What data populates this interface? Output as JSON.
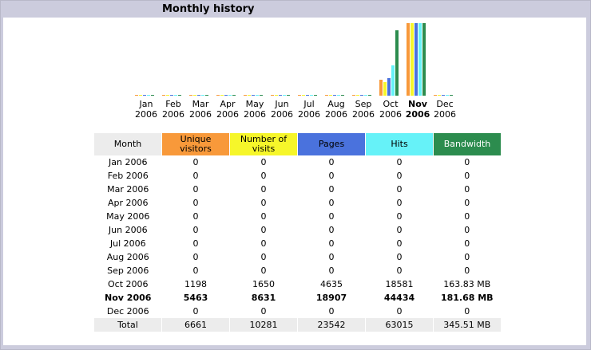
{
  "title": "Monthly history",
  "chart_data": {
    "type": "bar",
    "categories": [
      "Jan 2006",
      "Feb 2006",
      "Mar 2006",
      "Apr 2006",
      "May 2006",
      "Jun 2006",
      "Jul 2006",
      "Aug 2006",
      "Sep 2006",
      "Oct 2006",
      "Nov 2006",
      "Dec 2006"
    ],
    "category_lines": [
      [
        "Jan",
        "2006"
      ],
      [
        "Feb",
        "2006"
      ],
      [
        "Mar",
        "2006"
      ],
      [
        "Apr",
        "2006"
      ],
      [
        "May",
        "2006"
      ],
      [
        "Jun",
        "2006"
      ],
      [
        "Jul",
        "2006"
      ],
      [
        "Aug",
        "2006"
      ],
      [
        "Sep",
        "2006"
      ],
      [
        "Oct",
        "2006"
      ],
      [
        "Nov",
        "2006"
      ],
      [
        "Dec",
        "2006"
      ]
    ],
    "highlight_category": "Nov 2006",
    "series": [
      {
        "key": "visitors",
        "color": "#f8993a",
        "values": [
          0,
          0,
          0,
          0,
          0,
          0,
          0,
          0,
          0,
          1198,
          5463,
          0
        ]
      },
      {
        "key": "visits",
        "color": "#f6f62a",
        "values": [
          0,
          0,
          0,
          0,
          0,
          0,
          0,
          0,
          0,
          1650,
          8631,
          0
        ]
      },
      {
        "key": "pages",
        "color": "#4a72dd",
        "values": [
          0,
          0,
          0,
          0,
          0,
          0,
          0,
          0,
          0,
          4635,
          18907,
          0
        ]
      },
      {
        "key": "hits",
        "color": "#66f2f8",
        "values": [
          0,
          0,
          0,
          0,
          0,
          0,
          0,
          0,
          0,
          18581,
          44434,
          0
        ]
      },
      {
        "key": "bandwidth",
        "color": "#2c8c4e",
        "values": [
          0,
          0,
          0,
          0,
          0,
          0,
          0,
          0,
          0,
          163.83,
          181.68,
          0
        ]
      }
    ]
  },
  "table": {
    "headers": {
      "month": "Month",
      "visitors": [
        "Unique",
        "visitors"
      ],
      "visits": [
        "Number of",
        "visits"
      ],
      "pages": "Pages",
      "hits": "Hits",
      "bandwidth": "Bandwidth"
    },
    "rows": [
      {
        "month": "Jan 2006",
        "visitors": "0",
        "visits": "0",
        "pages": "0",
        "hits": "0",
        "bandwidth": "0"
      },
      {
        "month": "Feb 2006",
        "visitors": "0",
        "visits": "0",
        "pages": "0",
        "hits": "0",
        "bandwidth": "0"
      },
      {
        "month": "Mar 2006",
        "visitors": "0",
        "visits": "0",
        "pages": "0",
        "hits": "0",
        "bandwidth": "0"
      },
      {
        "month": "Apr 2006",
        "visitors": "0",
        "visits": "0",
        "pages": "0",
        "hits": "0",
        "bandwidth": "0"
      },
      {
        "month": "May 2006",
        "visitors": "0",
        "visits": "0",
        "pages": "0",
        "hits": "0",
        "bandwidth": "0"
      },
      {
        "month": "Jun 2006",
        "visitors": "0",
        "visits": "0",
        "pages": "0",
        "hits": "0",
        "bandwidth": "0"
      },
      {
        "month": "Jul 2006",
        "visitors": "0",
        "visits": "0",
        "pages": "0",
        "hits": "0",
        "bandwidth": "0"
      },
      {
        "month": "Aug 2006",
        "visitors": "0",
        "visits": "0",
        "pages": "0",
        "hits": "0",
        "bandwidth": "0"
      },
      {
        "month": "Sep 2006",
        "visitors": "0",
        "visits": "0",
        "pages": "0",
        "hits": "0",
        "bandwidth": "0"
      },
      {
        "month": "Oct 2006",
        "visitors": "1198",
        "visits": "1650",
        "pages": "4635",
        "hits": "18581",
        "bandwidth": "163.83 MB"
      },
      {
        "month": "Nov 2006",
        "visitors": "5463",
        "visits": "8631",
        "pages": "18907",
        "hits": "44434",
        "bandwidth": "181.68 MB",
        "bold": true
      },
      {
        "month": "Dec 2006",
        "visitors": "0",
        "visits": "0",
        "pages": "0",
        "hits": "0",
        "bandwidth": "0"
      }
    ],
    "total": {
      "month": "Total",
      "visitors": "6661",
      "visits": "10281",
      "pages": "23542",
      "hits": "63015",
      "bandwidth": "345.51 MB"
    }
  }
}
